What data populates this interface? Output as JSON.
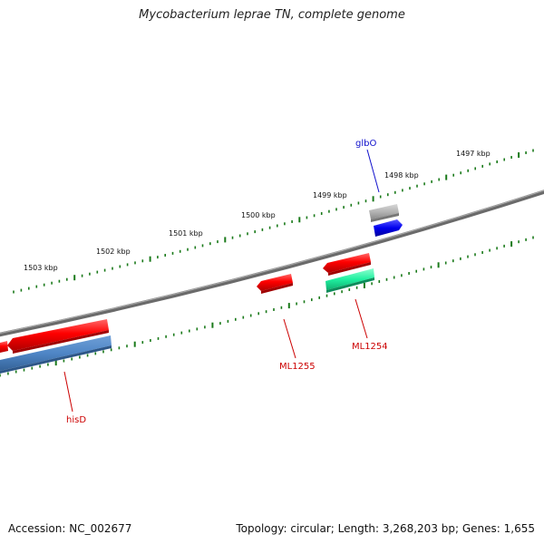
{
  "title": "Mycobacterium leprae TN, complete genome",
  "footer": {
    "accession": "Accession: NC_002677",
    "summary": "Topology: circular; Length: 3,268,203 bp; Genes: 1,655"
  },
  "scale_labels": [
    "1503 kbp",
    "1502 kbp",
    "1501 kbp",
    "1500 kbp",
    "1499 kbp",
    "1498 kbp",
    "1497 kbp"
  ],
  "gene_labels": {
    "glbO": "glbO",
    "hisD": "hisD",
    "ML1255": "ML1255",
    "ML1254": "ML1254"
  },
  "colors": {
    "backbone": "#808080",
    "ticks": "#1a7a1a",
    "gene_red": "#ff0000",
    "gene_blue": "#0000ee",
    "gene_grey": "#b0b0b0",
    "gene_steelblue": "#4f86c6",
    "gene_teal": "#20f0a0",
    "label_blue": "#1010cc",
    "label_red": "#cc0000"
  }
}
